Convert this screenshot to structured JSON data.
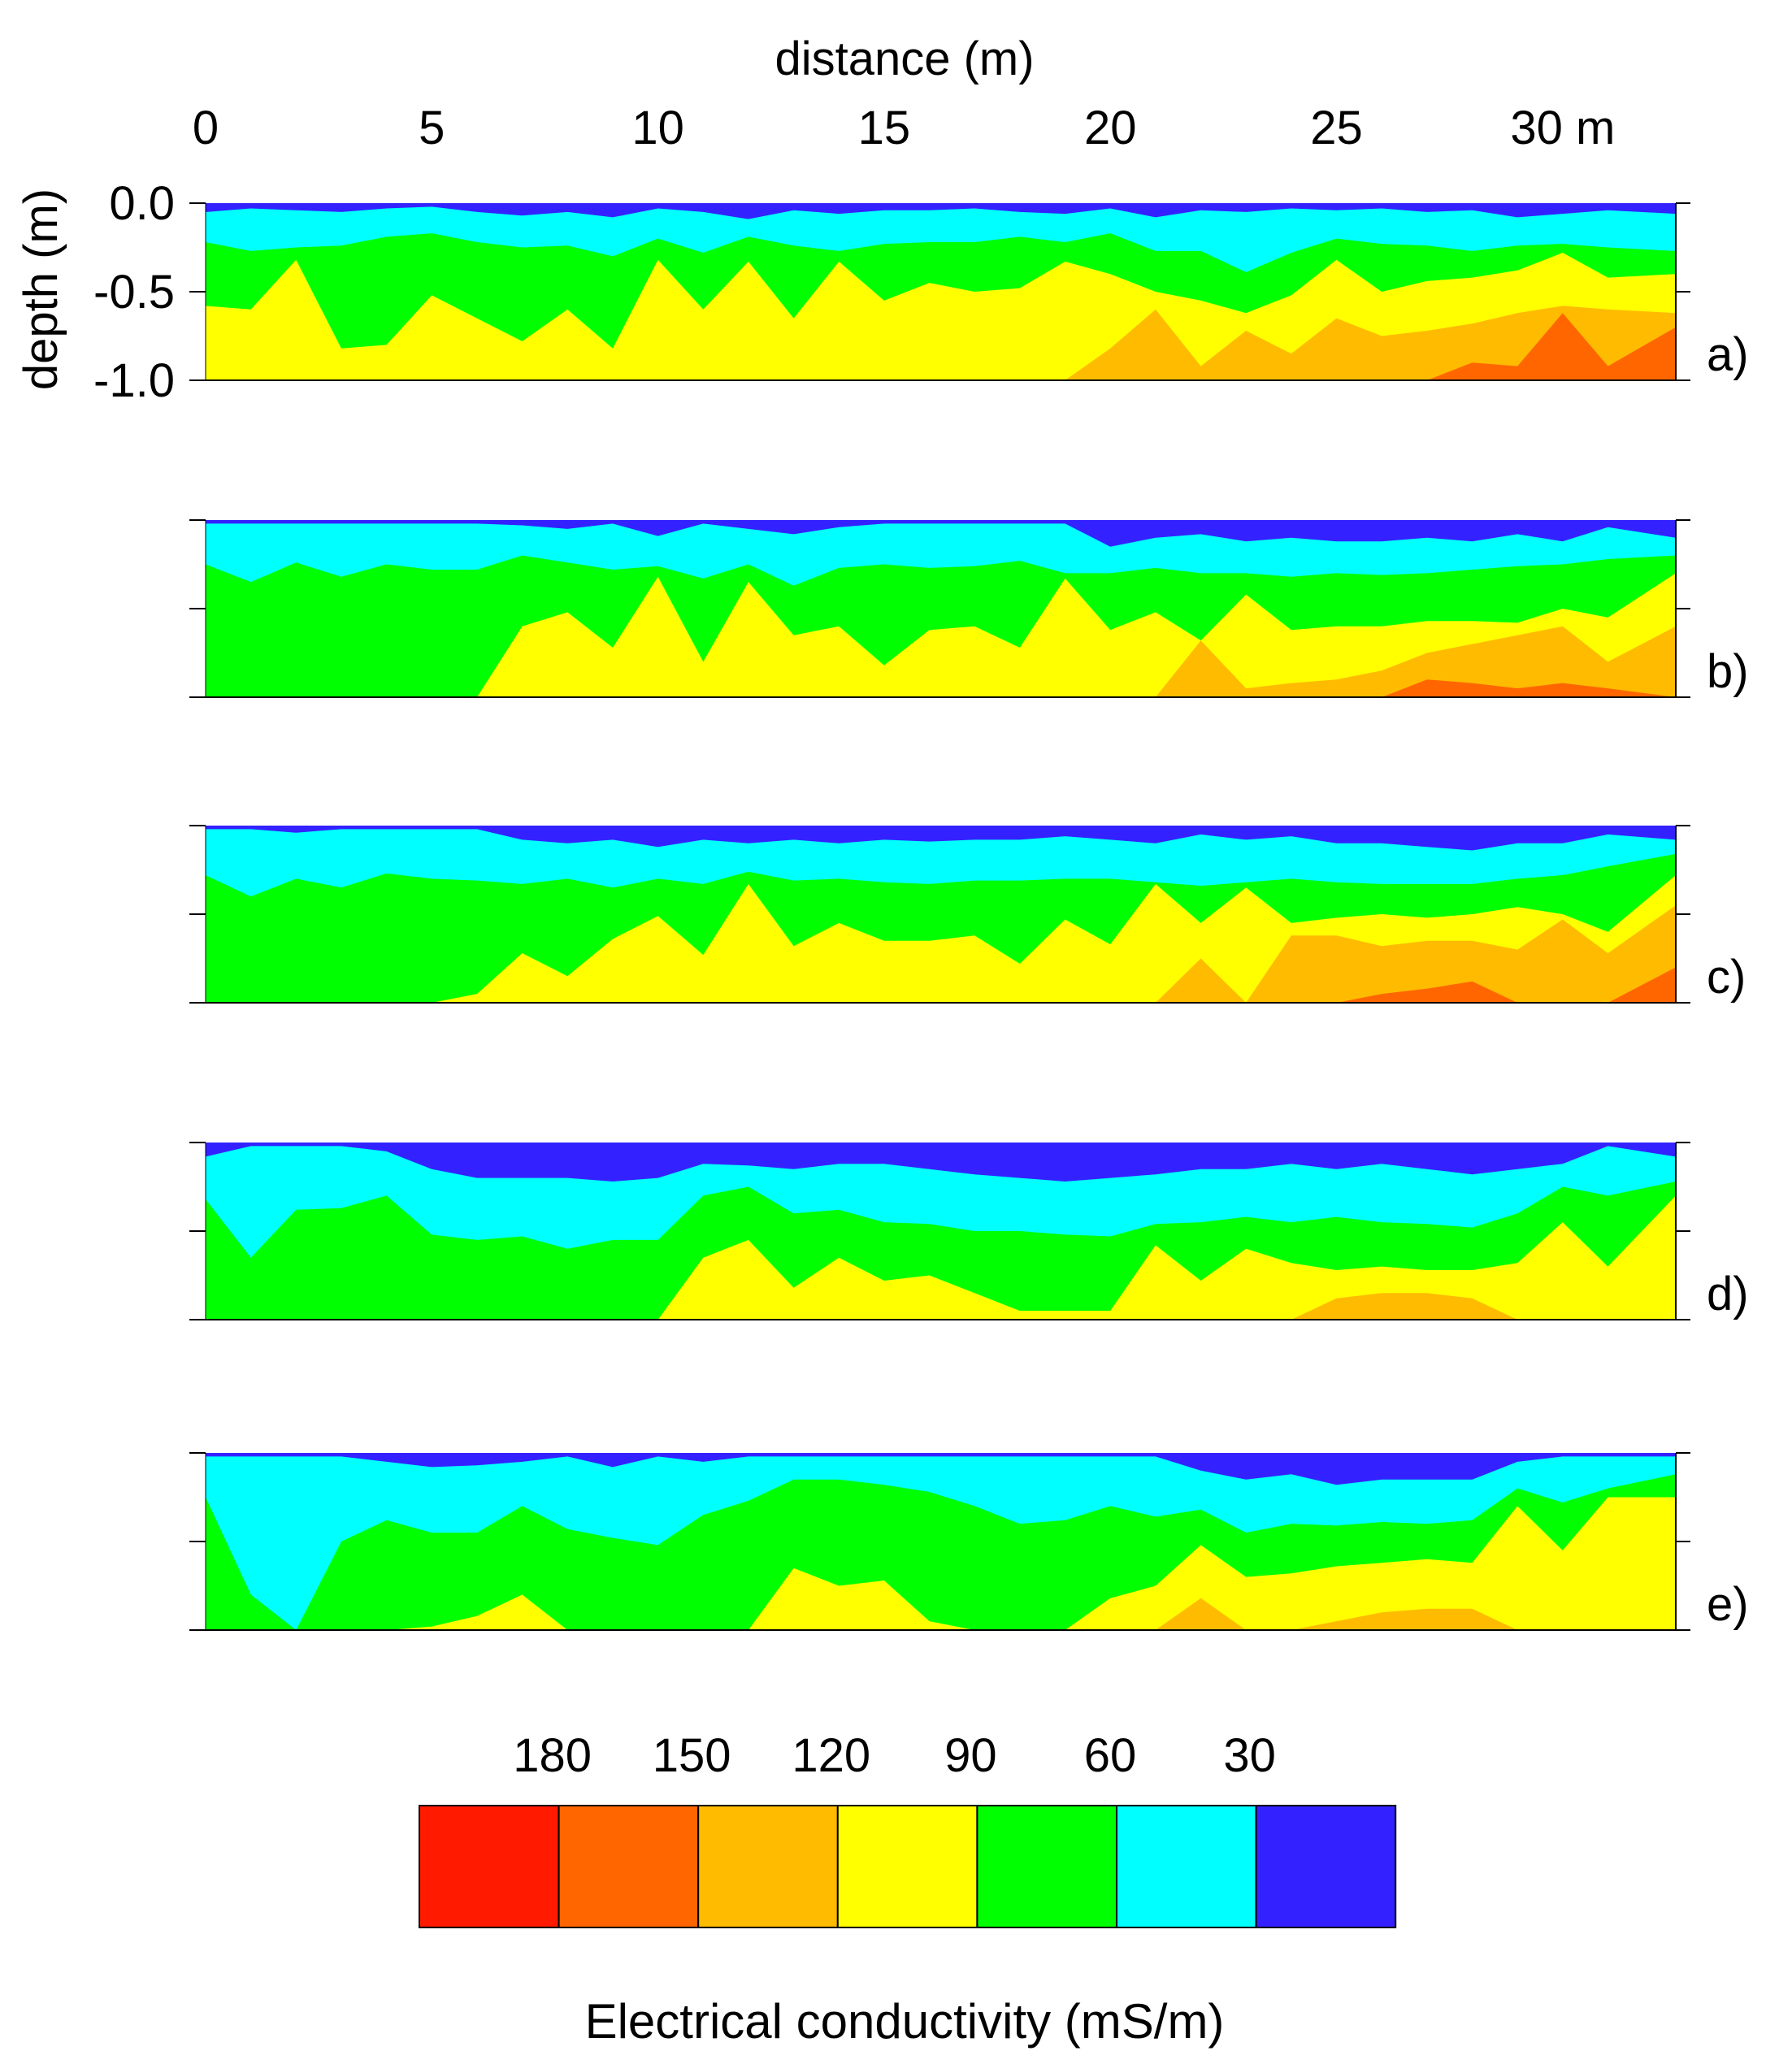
{
  "chart_data": {
    "type": "heatmap",
    "title": "",
    "xlabel": "distance (m)",
    "ylabel": "depth (m)",
    "xlim": [
      0,
      32.5
    ],
    "ylim": [
      -1.0,
      0.0
    ],
    "x_ticks": [
      0,
      5,
      10,
      15,
      20,
      25,
      30
    ],
    "x_tick_labels": [
      "0",
      "5",
      "10",
      "15",
      "20",
      "25",
      "30 m"
    ],
    "y_ticks": [
      0.0,
      -0.5,
      -1.0
    ],
    "y_tick_labels": [
      "0.0",
      "-0.5",
      "-1.0"
    ],
    "panels": [
      {
        "label": "a)",
        "x": [
          0,
          1,
          2,
          3,
          4,
          5,
          6,
          7,
          8,
          9,
          10,
          11,
          12,
          13,
          14,
          15,
          16,
          17,
          18,
          19,
          20,
          21,
          22,
          23,
          24,
          25,
          26,
          27,
          28,
          29,
          30,
          31,
          32.5
        ],
        "boundaries": [
          [
            -0.05,
            -0.03,
            -0.04,
            -0.05,
            -0.03,
            -0.02,
            -0.05,
            -0.07,
            -0.05,
            -0.08,
            -0.03,
            -0.05,
            -0.09,
            -0.04,
            -0.06,
            -0.04,
            -0.04,
            -0.03,
            -0.05,
            -0.06,
            -0.03,
            -0.08,
            -0.04,
            -0.05,
            -0.03,
            -0.04,
            -0.03,
            -0.05,
            -0.04,
            -0.08,
            -0.06,
            -0.04,
            -0.06
          ],
          [
            -0.22,
            -0.27,
            -0.25,
            -0.24,
            -0.19,
            -0.17,
            -0.22,
            -0.25,
            -0.24,
            -0.3,
            -0.2,
            -0.28,
            -0.19,
            -0.24,
            -0.27,
            -0.23,
            -0.22,
            -0.22,
            -0.19,
            -0.22,
            -0.17,
            -0.27,
            -0.27,
            -0.39,
            -0.28,
            -0.2,
            -0.23,
            -0.24,
            -0.27,
            -0.24,
            -0.23,
            -0.25,
            -0.27
          ],
          [
            -0.58,
            -0.6,
            -0.32,
            -0.82,
            -0.8,
            -0.52,
            -0.65,
            -0.78,
            -0.6,
            -0.82,
            -0.32,
            -0.6,
            -0.33,
            -0.65,
            -0.33,
            -0.55,
            -0.45,
            -0.5,
            -0.48,
            -0.33,
            -0.4,
            -0.5,
            -0.55,
            -0.62,
            -0.52,
            -0.32,
            -0.5,
            -0.44,
            -0.42,
            -0.38,
            -0.28,
            -0.42,
            -0.4
          ],
          [
            -1.0,
            -1.0,
            -1.0,
            -1.0,
            -1.0,
            -1.0,
            -1.0,
            -1.0,
            -1.0,
            -1.0,
            -1.0,
            -1.0,
            -1.0,
            -1.0,
            -1.0,
            -1.0,
            -1.0,
            -1.0,
            -1.0,
            -1.0,
            -0.82,
            -0.6,
            -0.92,
            -0.72,
            -0.85,
            -0.65,
            -0.75,
            -0.72,
            -0.68,
            -0.62,
            -0.58,
            -0.6,
            -0.62
          ],
          [
            -1.0,
            -1.0,
            -1.0,
            -1.0,
            -1.0,
            -1.0,
            -1.0,
            -1.0,
            -1.0,
            -1.0,
            -1.0,
            -1.0,
            -1.0,
            -1.0,
            -1.0,
            -1.0,
            -1.0,
            -1.0,
            -1.0,
            -1.0,
            -1.0,
            -1.0,
            -1.0,
            -1.0,
            -1.0,
            -1.0,
            -1.0,
            -1.0,
            -0.9,
            -0.92,
            -0.62,
            -0.92,
            -0.7
          ]
        ]
      },
      {
        "label": "b)",
        "x": [
          0,
          1,
          2,
          3,
          4,
          5,
          6,
          7,
          8,
          9,
          10,
          11,
          12,
          13,
          14,
          15,
          16,
          17,
          18,
          19,
          20,
          21,
          22,
          23,
          24,
          25,
          26,
          27,
          28,
          29,
          30,
          31,
          32.5
        ],
        "boundaries": [
          [
            -0.02,
            -0.02,
            -0.02,
            -0.02,
            -0.02,
            -0.02,
            -0.02,
            -0.03,
            -0.05,
            -0.02,
            -0.09,
            -0.02,
            -0.05,
            -0.08,
            -0.04,
            -0.02,
            -0.02,
            -0.02,
            -0.02,
            -0.02,
            -0.15,
            -0.1,
            -0.08,
            -0.12,
            -0.1,
            -0.12,
            -0.12,
            -0.1,
            -0.12,
            -0.08,
            -0.12,
            -0.04,
            -0.1
          ],
          [
            -0.25,
            -0.35,
            -0.24,
            -0.32,
            -0.25,
            -0.28,
            -0.28,
            -0.2,
            -0.24,
            -0.28,
            -0.26,
            -0.33,
            -0.25,
            -0.37,
            -0.27,
            -0.25,
            -0.27,
            -0.26,
            -0.23,
            -0.3,
            -0.3,
            -0.27,
            -0.3,
            -0.3,
            -0.32,
            -0.3,
            -0.31,
            -0.3,
            -0.28,
            -0.26,
            -0.25,
            -0.22,
            -0.2
          ],
          [
            -1.0,
            -1.0,
            -1.0,
            -1.0,
            -1.0,
            -1.0,
            -1.0,
            -0.6,
            -0.52,
            -0.72,
            -0.32,
            -0.8,
            -0.35,
            -0.65,
            -0.6,
            -0.82,
            -0.62,
            -0.6,
            -0.72,
            -0.33,
            -0.62,
            -0.52,
            -0.68,
            -0.42,
            -0.62,
            -0.6,
            -0.6,
            -0.57,
            -0.57,
            -0.58,
            -0.5,
            -0.55,
            -0.3
          ],
          [
            -1.0,
            -1.0,
            -1.0,
            -1.0,
            -1.0,
            -1.0,
            -1.0,
            -1.0,
            -1.0,
            -1.0,
            -1.0,
            -1.0,
            -1.0,
            -1.0,
            -1.0,
            -1.0,
            -1.0,
            -1.0,
            -1.0,
            -1.0,
            -1.0,
            -1.0,
            -0.68,
            -0.95,
            -0.92,
            -0.9,
            -0.85,
            -0.75,
            -0.7,
            -0.65,
            -0.6,
            -0.8,
            -0.6
          ],
          [
            -1.0,
            -1.0,
            -1.0,
            -1.0,
            -1.0,
            -1.0,
            -1.0,
            -1.0,
            -1.0,
            -1.0,
            -1.0,
            -1.0,
            -1.0,
            -1.0,
            -1.0,
            -1.0,
            -1.0,
            -1.0,
            -1.0,
            -1.0,
            -1.0,
            -1.0,
            -1.0,
            -1.0,
            -1.0,
            -1.0,
            -1.0,
            -0.9,
            -0.92,
            -0.95,
            -0.92,
            -0.95,
            -1.0
          ]
        ]
      },
      {
        "label": "c)",
        "x": [
          0,
          1,
          2,
          3,
          4,
          5,
          6,
          7,
          8,
          9,
          10,
          11,
          12,
          13,
          14,
          15,
          16,
          17,
          18,
          19,
          20,
          21,
          22,
          23,
          24,
          25,
          26,
          27,
          28,
          29,
          30,
          31,
          32.5
        ],
        "boundaries": [
          [
            -0.02,
            -0.02,
            -0.04,
            -0.02,
            -0.02,
            -0.02,
            -0.02,
            -0.08,
            -0.1,
            -0.08,
            -0.12,
            -0.08,
            -0.1,
            -0.08,
            -0.1,
            -0.08,
            -0.09,
            -0.08,
            -0.08,
            -0.06,
            -0.08,
            -0.1,
            -0.05,
            -0.08,
            -0.06,
            -0.1,
            -0.1,
            -0.12,
            -0.14,
            -0.1,
            -0.1,
            -0.05,
            -0.08
          ],
          [
            -0.28,
            -0.4,
            -0.3,
            -0.35,
            -0.27,
            -0.3,
            -0.31,
            -0.33,
            -0.3,
            -0.35,
            -0.3,
            -0.33,
            -0.26,
            -0.31,
            -0.3,
            -0.32,
            -0.33,
            -0.31,
            -0.31,
            -0.3,
            -0.3,
            -0.32,
            -0.34,
            -0.32,
            -0.3,
            -0.32,
            -0.33,
            -0.33,
            -0.33,
            -0.3,
            -0.28,
            -0.23,
            -0.16
          ],
          [
            -1.0,
            -1.0,
            -1.0,
            -1.0,
            -1.0,
            -1.0,
            -0.95,
            -0.72,
            -0.85,
            -0.64,
            -0.51,
            -0.73,
            -0.33,
            -0.68,
            -0.55,
            -0.65,
            -0.65,
            -0.62,
            -0.78,
            -0.53,
            -0.67,
            -0.33,
            -0.55,
            -0.35,
            -0.55,
            -0.52,
            -0.5,
            -0.52,
            -0.5,
            -0.46,
            -0.5,
            -0.6,
            -0.28
          ],
          [
            -1.0,
            -1.0,
            -1.0,
            -1.0,
            -1.0,
            -1.0,
            -1.0,
            -1.0,
            -1.0,
            -1.0,
            -1.0,
            -1.0,
            -1.0,
            -1.0,
            -1.0,
            -1.0,
            -1.0,
            -1.0,
            -1.0,
            -1.0,
            -1.0,
            -1.0,
            -0.75,
            -1.0,
            -0.62,
            -0.62,
            -0.68,
            -0.65,
            -0.65,
            -0.7,
            -0.53,
            -0.72,
            -0.45
          ],
          [
            -1.0,
            -1.0,
            -1.0,
            -1.0,
            -1.0,
            -1.0,
            -1.0,
            -1.0,
            -1.0,
            -1.0,
            -1.0,
            -1.0,
            -1.0,
            -1.0,
            -1.0,
            -1.0,
            -1.0,
            -1.0,
            -1.0,
            -1.0,
            -1.0,
            -1.0,
            -1.0,
            -1.0,
            -1.0,
            -1.0,
            -0.95,
            -0.92,
            -0.88,
            -1.0,
            -1.0,
            -1.0,
            -0.8
          ]
        ]
      },
      {
        "label": "d)",
        "x": [
          0,
          1,
          2,
          3,
          4,
          5,
          6,
          7,
          8,
          9,
          10,
          11,
          12,
          13,
          14,
          15,
          16,
          17,
          18,
          19,
          20,
          21,
          22,
          23,
          24,
          25,
          26,
          27,
          28,
          29,
          30,
          31,
          32.5
        ],
        "boundaries": [
          [
            -0.08,
            -0.02,
            -0.02,
            -0.02,
            -0.05,
            -0.15,
            -0.2,
            -0.2,
            -0.2,
            -0.22,
            -0.2,
            -0.12,
            -0.13,
            -0.15,
            -0.12,
            -0.12,
            -0.15,
            -0.18,
            -0.2,
            -0.22,
            -0.2,
            -0.18,
            -0.15,
            -0.15,
            -0.12,
            -0.15,
            -0.12,
            -0.15,
            -0.18,
            -0.15,
            -0.12,
            -0.02,
            -0.08
          ],
          [
            -0.32,
            -0.65,
            -0.38,
            -0.37,
            -0.3,
            -0.52,
            -0.55,
            -0.53,
            -0.6,
            -0.55,
            -0.55,
            -0.3,
            -0.25,
            -0.4,
            -0.38,
            -0.45,
            -0.46,
            -0.5,
            -0.5,
            -0.52,
            -0.53,
            -0.46,
            -0.45,
            -0.42,
            -0.45,
            -0.42,
            -0.45,
            -0.46,
            -0.48,
            -0.4,
            -0.25,
            -0.3,
            -0.22
          ],
          [
            -1.0,
            -1.0,
            -1.0,
            -1.0,
            -1.0,
            -1.0,
            -1.0,
            -1.0,
            -1.0,
            -1.0,
            -1.0,
            -0.65,
            -0.55,
            -0.82,
            -0.65,
            -0.78,
            -0.75,
            -0.85,
            -0.95,
            -0.95,
            -0.95,
            -0.58,
            -0.78,
            -0.6,
            -0.68,
            -0.72,
            -0.7,
            -0.72,
            -0.72,
            -0.68,
            -0.45,
            -0.7,
            -0.3
          ],
          [
            -1.0,
            -1.0,
            -1.0,
            -1.0,
            -1.0,
            -1.0,
            -1.0,
            -1.0,
            -1.0,
            -1.0,
            -1.0,
            -1.0,
            -1.0,
            -1.0,
            -1.0,
            -1.0,
            -1.0,
            -1.0,
            -1.0,
            -1.0,
            -1.0,
            -1.0,
            -1.0,
            -1.0,
            -1.0,
            -0.88,
            -0.85,
            -0.85,
            -0.88,
            -1.0,
            -1.0,
            -1.0,
            -1.0
          ]
        ]
      },
      {
        "label": "e)",
        "x": [
          0,
          1,
          2,
          3,
          4,
          5,
          6,
          7,
          8,
          9,
          10,
          11,
          12,
          13,
          14,
          15,
          16,
          17,
          18,
          19,
          20,
          21,
          22,
          23,
          24,
          25,
          26,
          27,
          28,
          29,
          30,
          31,
          32.5
        ],
        "boundaries": [
          [
            -0.02,
            -0.02,
            -0.02,
            -0.02,
            -0.05,
            -0.08,
            -0.07,
            -0.05,
            -0.02,
            -0.08,
            -0.02,
            -0.05,
            -0.02,
            -0.02,
            -0.02,
            -0.02,
            -0.02,
            -0.02,
            -0.02,
            -0.02,
            -0.02,
            -0.02,
            -0.1,
            -0.15,
            -0.12,
            -0.18,
            -0.15,
            -0.15,
            -0.15,
            -0.05,
            -0.02,
            -0.02,
            -0.02
          ],
          [
            -0.25,
            -0.8,
            -1.0,
            -0.5,
            -0.38,
            -0.45,
            -0.45,
            -0.3,
            -0.43,
            -0.48,
            -0.52,
            -0.35,
            -0.27,
            -0.15,
            -0.15,
            -0.18,
            -0.22,
            -0.3,
            -0.4,
            -0.38,
            -0.3,
            -0.36,
            -0.32,
            -0.45,
            -0.4,
            -0.41,
            -0.39,
            -0.4,
            -0.38,
            -0.2,
            -0.28,
            -0.2,
            -0.12
          ],
          [
            -1.0,
            -1.0,
            -1.0,
            -1.0,
            -1.0,
            -0.98,
            -0.92,
            -0.8,
            -1.0,
            -1.0,
            -1.0,
            -1.0,
            -1.0,
            -0.65,
            -0.75,
            -0.72,
            -0.95,
            -1.0,
            -1.0,
            -1.0,
            -0.82,
            -0.75,
            -0.52,
            -0.7,
            -0.68,
            -0.64,
            -0.62,
            -0.6,
            -0.62,
            -0.3,
            -0.55,
            -0.25,
            -0.25
          ],
          [
            -1.0,
            -1.0,
            -1.0,
            -1.0,
            -1.0,
            -1.0,
            -1.0,
            -1.0,
            -1.0,
            -1.0,
            -1.0,
            -1.0,
            -1.0,
            -1.0,
            -1.0,
            -1.0,
            -1.0,
            -1.0,
            -1.0,
            -1.0,
            -1.0,
            -1.0,
            -0.82,
            -1.0,
            -1.0,
            -0.95,
            -0.9,
            -0.88,
            -0.88,
            -1.0,
            -1.0,
            -1.0,
            -1.0
          ]
        ]
      }
    ],
    "legend": {
      "title": "Electrical conductivity (mS/m)",
      "placement": "bottom",
      "tick_labels": [
        "180",
        "150",
        "120",
        "90",
        "60",
        "30"
      ],
      "tick_values": [
        180,
        150,
        120,
        90,
        60,
        30
      ],
      "colors": [
        "#ff1a00",
        "#ff6600",
        "#ffbb00",
        "#ffff00",
        "#00ff00",
        "#00ffff",
        "#3322ff"
      ]
    }
  }
}
